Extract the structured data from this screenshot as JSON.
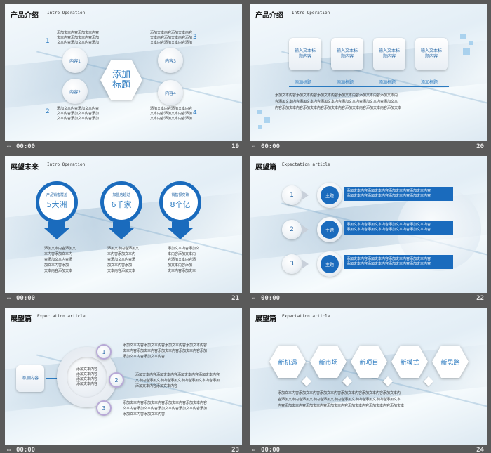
{
  "footer_time": "00:00",
  "text_line": "添加文本内容添加文本内容",
  "s19": {
    "num": "19",
    "title": "产品介绍",
    "sub": "Intro Operation",
    "center": "添加标题",
    "items": [
      {
        "label": "内容1",
        "num": "1"
      },
      {
        "label": "内容2",
        "num": "2"
      },
      {
        "label": "内容3",
        "num": "3"
      },
      {
        "label": "内容4",
        "num": "4"
      }
    ],
    "text_a": "添加文本内容添加文本内容",
    "text_b": "文本内容添加文本内容添加",
    "text_c": "文本内容添加文本内容添加"
  },
  "s20": {
    "num": "20",
    "title": "产品介绍",
    "sub": "Intro Operation",
    "boxes": [
      "输入文本标题内容",
      "输入文本标题内容",
      "输入文本标题内容",
      "输入文本标题内容"
    ],
    "tag": "添加标题",
    "para": [
      "添加文本内容添加文本内容添加文本内容添加文本内容添加文本内容添加文本内",
      "容添加文本内容添加文本内容添加文本内容添加文本内容添加文本内容添加文本",
      "内容添加文本内容添加文本内容添加文本内容添加文本内容添加文本内容添加文本"
    ]
  },
  "s21": {
    "num": "21",
    "title": "展望未来",
    "sub": "Intro Operation",
    "items": [
      {
        "cap": "产品销售覆盖",
        "big": "5大洲"
      },
      {
        "cap": "加盟店超过",
        "big": "6千家"
      },
      {
        "cap": "销售额突破",
        "big": "8个亿"
      }
    ],
    "desc": [
      "添加文本内容添加文",
      "本内容添加文本内",
      "容添加文本内容添",
      "加文本内容添加",
      "文本内容添加文本"
    ]
  },
  "s22": {
    "num": "22",
    "title": "展望篇",
    "sub": "Expectation article",
    "label": "主题",
    "nums": [
      "1",
      "2",
      "3"
    ],
    "bar_line1": "添加文本内容添加文本内容添加文本内容添加文本内容",
    "bar_line2": "添加文本内容添加文本内容添加文本内容添加文本内容"
  },
  "s23": {
    "num": "23",
    "title": "展望篇",
    "sub": "Expectation article",
    "left_box": "添加内容",
    "center": [
      "添加文本内容",
      "添加文本内容",
      "添加文本内容",
      "添加文本内容"
    ],
    "nums": [
      "1",
      "2",
      "3"
    ],
    "line1": "添加文本内容添加文本内容添加文本内容添加文本内容",
    "line2": "文本内容添加文本内容添加文本内容添加文本内容添加",
    "line3": "添加文本内容添加文本内容"
  },
  "s24": {
    "num": "24",
    "title": "展望篇",
    "sub": "Expectation article",
    "hexes": [
      "新机遇",
      "新市场",
      "新项目",
      "新模式",
      "新思路"
    ],
    "para": [
      "添加文本内容添加文本内容添加文本内容添加文本内容添加文本内容添加文本内",
      "容添加文本内容添加文本内容添加文本内容添加文本内容添加文本内容添加文本",
      "内容添加文本内容添加文本内容添加文本内容添加文本内容添加文本内容添加文本"
    ]
  }
}
